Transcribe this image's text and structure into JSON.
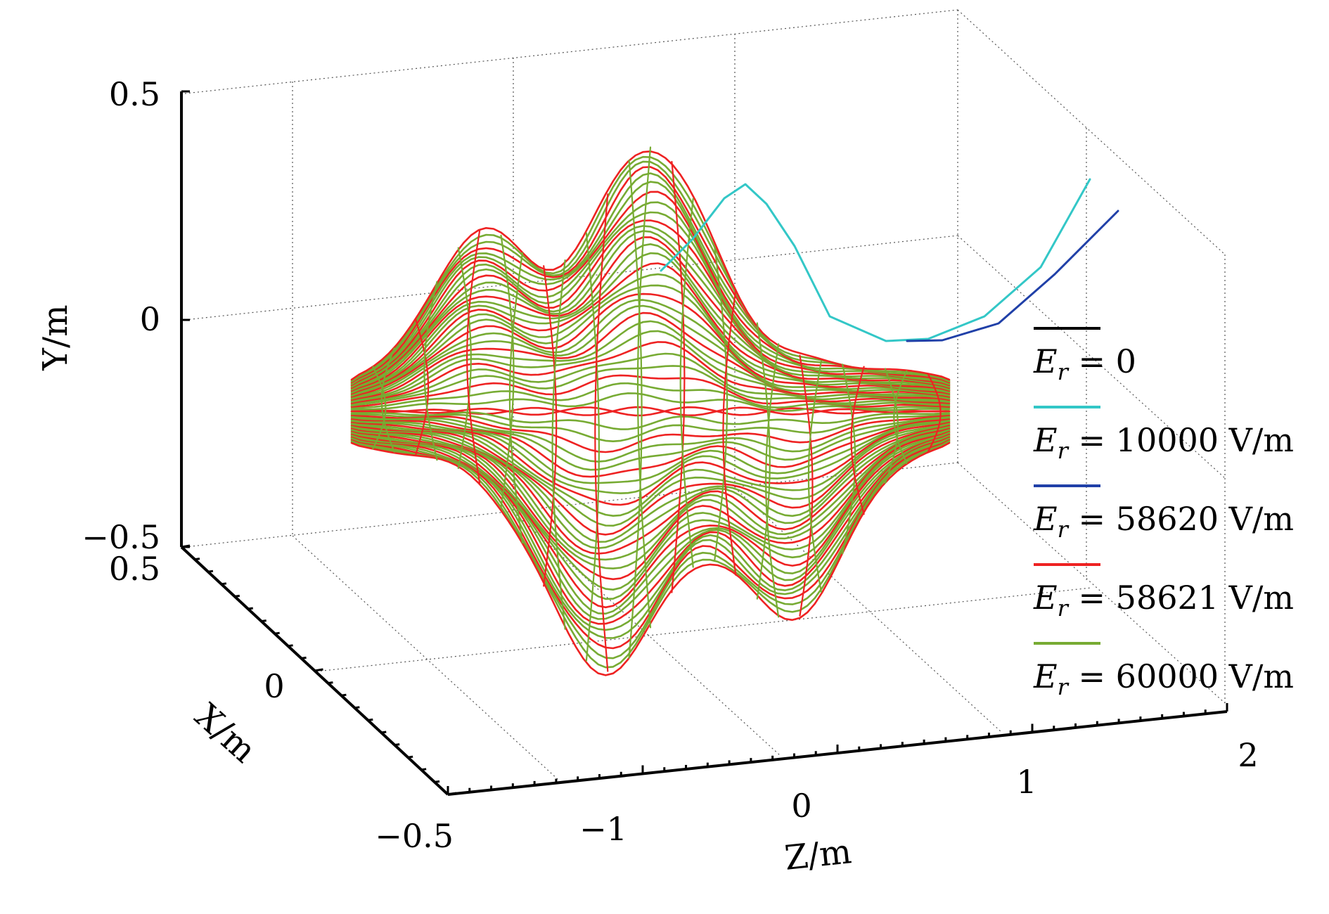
{
  "chart_data": {
    "type": "line",
    "subtype": "3d-trajectory",
    "xlabel": "X/m",
    "ylabel": "Y/m",
    "zlabel": "Z/m",
    "xlim": [
      -0.5,
      0.5
    ],
    "ylim": [
      -0.5,
      0.5
    ],
    "zlim": [
      -1.5,
      2
    ],
    "x_ticks": [
      "0.5",
      "0",
      "−0.5"
    ],
    "y_ticks": [
      "0.5",
      "0",
      "−0.5"
    ],
    "z_ticks": [
      "−1",
      "0",
      "1",
      "2"
    ],
    "grid": true,
    "legend_position": "right",
    "series": [
      {
        "name_lhs": "E",
        "name_sub": "r",
        "name_rhs": " = 0",
        "color": "#000000"
      },
      {
        "name_lhs": "E",
        "name_sub": "r",
        "name_rhs": " = 10000 V/m",
        "color": "#33c7c7"
      },
      {
        "name_lhs": "E",
        "name_sub": "r",
        "name_rhs": " = 58620 V/m",
        "color": "#2040a8"
      },
      {
        "name_lhs": "E",
        "name_sub": "r",
        "name_rhs": " = 58621 V/m",
        "color": "#ee2222"
      },
      {
        "name_lhs": "E",
        "name_sub": "r",
        "name_rhs": " = 60000 V/m",
        "color": "#77ab33"
      }
    ]
  }
}
